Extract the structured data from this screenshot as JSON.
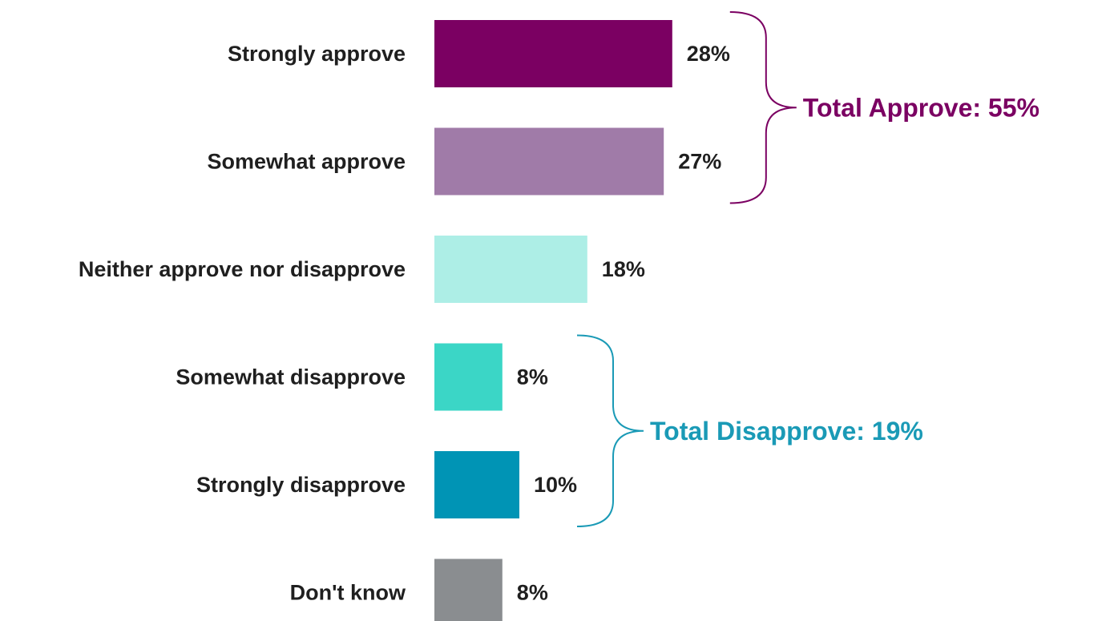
{
  "chart_data": {
    "type": "bar",
    "orientation": "horizontal",
    "categories": [
      "Strongly approve",
      "Somewhat approve",
      "Neither approve nor disapprove",
      "Somewhat disapprove",
      "Strongly disapprove",
      "Don't know"
    ],
    "values": [
      28,
      27,
      18,
      8,
      10,
      8
    ],
    "value_labels": [
      "28%",
      "27%",
      "18%",
      "8%",
      "10%",
      "8%"
    ],
    "unit": "%",
    "colors": [
      "#7b0062",
      "#a07ba8",
      "#adeee6",
      "#3bd6c6",
      "#0094b5",
      "#8a8d90"
    ],
    "xlim": [
      0,
      30
    ],
    "grid": false,
    "groups": [
      {
        "label": "Total Approve: 55%",
        "value": 55,
        "members": [
          0,
          1
        ],
        "color": "#7b0062"
      },
      {
        "label": "Total Disapprove: 19%",
        "value": 19,
        "members": [
          3,
          4
        ],
        "color": "#1a9ab6"
      }
    ]
  }
}
